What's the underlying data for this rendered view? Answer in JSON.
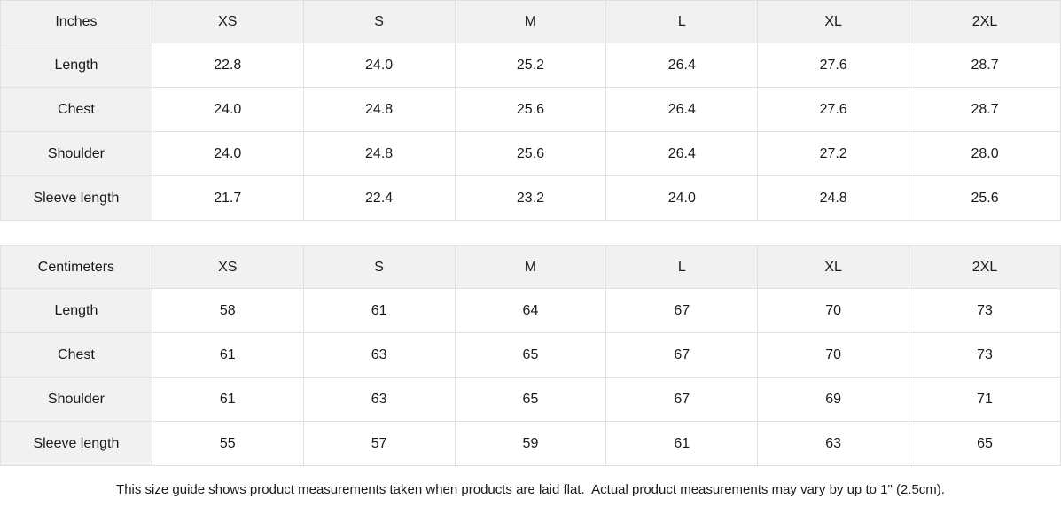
{
  "colors": {
    "header_bg": "#f1f1f1",
    "label_col_bg": "#f1f1f1",
    "border": "#e0e0e0",
    "cell_bg": "#ffffff",
    "text": "#1a1a1a"
  },
  "size_guide": {
    "columns": [
      "XS",
      "S",
      "M",
      "L",
      "XL",
      "2XL"
    ],
    "sections": [
      {
        "unit_label": "Inches",
        "rows": [
          {
            "label": "Length",
            "values": [
              "22.8",
              "24.0",
              "25.2",
              "26.4",
              "27.6",
              "28.7"
            ]
          },
          {
            "label": "Chest",
            "values": [
              "24.0",
              "24.8",
              "25.6",
              "26.4",
              "27.6",
              "28.7"
            ]
          },
          {
            "label": "Shoulder",
            "values": [
              "24.0",
              "24.8",
              "25.6",
              "26.4",
              "27.2",
              "28.0"
            ]
          },
          {
            "label": "Sleeve length",
            "values": [
              "21.7",
              "22.4",
              "23.2",
              "24.0",
              "24.8",
              "25.6"
            ]
          }
        ]
      },
      {
        "unit_label": "Centimeters",
        "rows": [
          {
            "label": "Length",
            "values": [
              "58",
              "61",
              "64",
              "67",
              "70",
              "73"
            ]
          },
          {
            "label": "Chest",
            "values": [
              "61",
              "63",
              "65",
              "67",
              "70",
              "73"
            ]
          },
          {
            "label": "Shoulder",
            "values": [
              "61",
              "63",
              "65",
              "67",
              "69",
              "71"
            ]
          },
          {
            "label": "Sleeve length",
            "values": [
              "55",
              "57",
              "59",
              "61",
              "63",
              "65"
            ]
          }
        ]
      }
    ],
    "footnote": "This size guide shows product measurements taken when products are laid flat.  Actual product measurements may vary by up to 1\" (2.5cm)."
  }
}
